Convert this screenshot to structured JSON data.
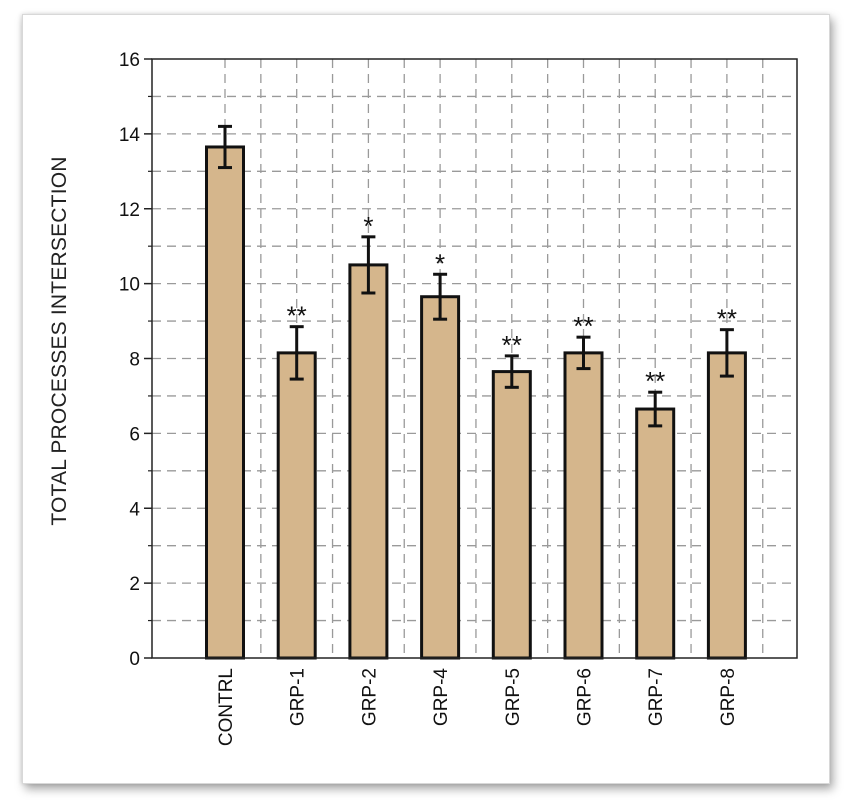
{
  "chart_data": {
    "type": "bar",
    "title": "",
    "xlabel": "",
    "ylabel": "TOTAL PROCESSES INTERSECTION",
    "ylim": [
      0,
      16
    ],
    "yticks": [
      0,
      2,
      4,
      6,
      8,
      10,
      12,
      14,
      16
    ],
    "grid": true,
    "categories": [
      "CONTRL",
      "GRP-1",
      "GRP-2",
      "GRP-4",
      "GRP-5",
      "GRP-6",
      "GRP-7",
      "GRP-8"
    ],
    "values": [
      13.65,
      8.15,
      10.5,
      9.65,
      7.65,
      8.15,
      6.65,
      8.15
    ],
    "errors": [
      0.55,
      0.7,
      0.75,
      0.6,
      0.42,
      0.42,
      0.45,
      0.62
    ],
    "significance": [
      "",
      "**",
      "*",
      "*",
      "**",
      "**",
      "**",
      "**"
    ],
    "colors": {
      "bar_fill": "#d5b68c",
      "bar_stroke": "#111111",
      "grid": "#9a9a9a",
      "axis": "#222222"
    }
  }
}
